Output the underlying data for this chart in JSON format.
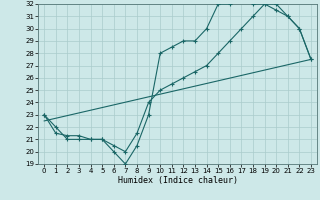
{
  "title": "",
  "xlabel": "Humidex (Indice chaleur)",
  "ylabel": "",
  "background_color": "#cde8e8",
  "grid_color": "#aacccc",
  "line_color": "#1a6666",
  "xlim": [
    -0.5,
    23.5
  ],
  "ylim": [
    19,
    32
  ],
  "xticks": [
    0,
    1,
    2,
    3,
    4,
    5,
    6,
    7,
    8,
    9,
    10,
    11,
    12,
    13,
    14,
    15,
    16,
    17,
    18,
    19,
    20,
    21,
    22,
    23
  ],
  "yticks": [
    19,
    20,
    21,
    22,
    23,
    24,
    25,
    26,
    27,
    28,
    29,
    30,
    31,
    32
  ],
  "series1_x": [
    0,
    1,
    2,
    3,
    4,
    5,
    6,
    7,
    8,
    9,
    10,
    11,
    12,
    13,
    14,
    15,
    16,
    17,
    18,
    19,
    20,
    21,
    22,
    23
  ],
  "series1_y": [
    23,
    22,
    21,
    21,
    21,
    21,
    20,
    19,
    20.5,
    23,
    28,
    28.5,
    29,
    29,
    30,
    32,
    32,
    32.5,
    32,
    32,
    31.5,
    31,
    30,
    27.5
  ],
  "series2_x": [
    0,
    1,
    2,
    3,
    4,
    5,
    6,
    7,
    8,
    9,
    10,
    11,
    12,
    13,
    14,
    15,
    16,
    17,
    18,
    19,
    20,
    21,
    22,
    23
  ],
  "series2_y": [
    23,
    21.5,
    21.3,
    21.3,
    21.0,
    21.0,
    20.5,
    20.0,
    21.5,
    24.0,
    25.0,
    25.5,
    26.0,
    26.5,
    27.0,
    28.0,
    29.0,
    30.0,
    31.0,
    32.0,
    32.0,
    31.0,
    30.0,
    27.5
  ],
  "series3_x": [
    0,
    23
  ],
  "series3_y": [
    22.5,
    27.5
  ]
}
